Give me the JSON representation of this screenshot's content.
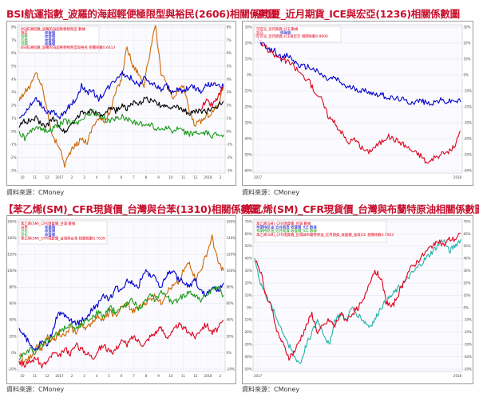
{
  "panels": [
    {
      "title": "BSI航運指數_波羅的海超輕便極限型與裕民(2606)相關係數圖",
      "source": "資料來源：CMoney",
      "chart_data": {
        "type": "line",
        "yticks_left": [
          "8%",
          "7%",
          "6%",
          "5%",
          "4%",
          "3%",
          "2%",
          "1%",
          "0%",
          "-1%",
          "-2%",
          "-3%"
        ],
        "yticks_right": [
          "8%",
          "7%",
          "6%",
          "5%",
          "4%",
          "3%",
          "2%",
          "1%",
          "0%",
          "-1%",
          "-2%",
          "-3%"
        ],
        "xticks": [
          "10",
          "11",
          "12",
          "2017",
          "2",
          "3",
          "4",
          "5",
          "6",
          "7",
          "8",
          "9",
          "10",
          "11",
          "12",
          "2018",
          "2"
        ],
        "legend": [
          {
            "text": "BSI航運指數_波羅的海超輕便極限型 數據",
            "color": "#e0001b"
          },
          {
            "text": "裕民",
            "color": "#e0001b"
          },
          {
            "text": "收盤價",
            "color": "#0000cc"
          },
          {
            "text": "指數",
            "color": "#1a9a1a"
          },
          {
            "text": "收盤價",
            "color": "#0000cc"
          },
          {
            "text": "信義",
            "color": "#1a9a1a"
          },
          {
            "text": "收盤價",
            "color": "#0000cc"
          },
          {
            "text": "中鋼",
            "color": "#1a9a1a"
          },
          {
            "text": "收盤價",
            "color": "#0000cc"
          },
          {
            "text": "BSI航運指數_波羅的海超輕便極限型與裕民 相關係數0.6413",
            "color": "#e0001b"
          }
        ],
        "series": [
          {
            "color": "#cc6600",
            "values": [
              2.5,
              3.0,
              3.5,
              4.5,
              3.5,
              1.5,
              -0.5,
              -1.0,
              -2.5,
              -1.5,
              -1.0,
              -0.5,
              -0.8,
              0.5,
              1.0,
              0.8,
              1.5,
              3.0,
              4.0,
              6.5,
              5.0,
              4.5,
              3.5,
              6.0,
              8.0,
              4.5,
              3.5,
              2.5,
              3.0,
              3.5,
              1.5,
              0.5,
              0.8,
              1.2,
              1.5,
              2.0,
              3.5
            ]
          },
          {
            "color": "#0000cc",
            "values": [
              1.0,
              1.5,
              2.0,
              2.5,
              2.0,
              1.5,
              1.5,
              1.0,
              1.5,
              2.0,
              2.5,
              3.5,
              3.0,
              3.0,
              2.5,
              3.0,
              3.5,
              4.0,
              4.5,
              4.2,
              4.0,
              3.5,
              4.0,
              3.8,
              3.5,
              3.2,
              3.5,
              3.0,
              3.2,
              3.0,
              3.5,
              3.3,
              3.0,
              3.5,
              3.6,
              3.4,
              3.5
            ]
          },
          {
            "color": "#000000",
            "values": [
              0.5,
              0.8,
              0.8,
              1.0,
              0.5,
              0.5,
              1.0,
              0.5,
              0.0,
              0.5,
              1.0,
              1.5,
              1.5,
              1.5,
              1.3,
              1.2,
              1.8,
              1.6,
              2.0,
              1.8,
              2.2,
              2.0,
              2.5,
              2.4,
              2.2,
              2.0,
              1.8,
              2.0,
              1.8,
              1.6,
              1.4,
              1.5,
              1.6,
              1.5,
              1.8,
              2.0,
              2.3
            ]
          },
          {
            "color": "#1a9a1a",
            "values": [
              0.0,
              -0.5,
              0.0,
              0.5,
              0.2,
              0.0,
              0.3,
              0.5,
              0.8,
              0.7,
              0.6,
              1.0,
              1.3,
              1.5,
              1.2,
              1.0,
              0.8,
              1.0,
              1.2,
              1.0,
              0.8,
              0.6,
              0.5,
              0.6,
              0.3,
              0.2,
              0.4,
              0.0,
              0.2,
              0.0,
              -0.2,
              0.0,
              -0.2,
              -0.1,
              -0.3,
              -0.2,
              -0.2
            ]
          },
          {
            "color": "#e0001b",
            "values": [
              null,
              null,
              null,
              null,
              null,
              null,
              null,
              null,
              null,
              null,
              null,
              null,
              null,
              null,
              null,
              null,
              null,
              null,
              null,
              null,
              null,
              null,
              null,
              null,
              null,
              null,
              null,
              null,
              null,
              null,
              null,
              null,
              1.8,
              2.3,
              2.0,
              2.6,
              3.4
            ]
          }
        ],
        "ylim": [
          -3,
          8
        ]
      }
    },
    {
      "title": "可可豆_近月期貨_ICE與宏亞(1236)相關係數圖",
      "source": "資料來源：CMoney",
      "chart_data": {
        "type": "line",
        "yticks_left": [
          "30%",
          "20%",
          "10%",
          "0%",
          "-10%",
          "-20%",
          "-30%",
          "-40%",
          "-50%",
          "-60%"
        ],
        "yticks_right": [
          "30%",
          "20%",
          "10%",
          "0%",
          "-10%",
          "-20%",
          "-30%",
          "-40%",
          "-50%",
          "-60%"
        ],
        "xticks": [
          "2017",
          "2018"
        ],
        "legend": [
          {
            "text": "可可豆_近月期貨_ICE 數據",
            "color": "#e0001b"
          },
          {
            "text": "宏亞",
            "color": "#e0001b"
          },
          {
            "text": "收盤價",
            "color": "#0000cc"
          },
          {
            "text": "可可豆_近月期貨_ICE與宏亞 相關係數0.8906",
            "color": "#e0001b"
          }
        ],
        "series": [
          {
            "color": "#0000cc",
            "values": [
              25,
              20,
              15,
              15,
              10,
              12,
              8,
              5,
              5,
              3,
              0,
              -3,
              -2,
              -5,
              -8,
              -8,
              -10,
              -10,
              -12,
              -12,
              -14,
              -15,
              -15,
              -17,
              -17,
              -16,
              -18,
              -17,
              -16,
              -17,
              -16,
              -17
            ]
          },
          {
            "color": "#e0001b",
            "values": [
              25,
              20,
              15,
              12,
              10,
              8,
              5,
              0,
              -3,
              -10,
              -15,
              -25,
              -30,
              -35,
              -42,
              -40,
              -45,
              -48,
              -45,
              -42,
              -38,
              -40,
              -42,
              -45,
              -48,
              -50,
              -55,
              -52,
              -50,
              -48,
              -45,
              -35
            ]
          }
        ],
        "ylim": [
          -60,
          30
        ]
      }
    },
    {
      "title": "【苯乙烯(SM)_CFR現貨價_台灣與台苯(1310)相關係數圖",
      "source": "資料來源：CMoney",
      "chart_data": {
        "type": "line",
        "yticks_left": [
          "160%",
          "140%",
          "120%",
          "100%",
          "80%",
          "60%",
          "40%",
          "20%",
          "0%",
          "-20%"
        ],
        "yticks_right": [
          "160%",
          "140%",
          "120%",
          "100%",
          "80%",
          "60%",
          "40%",
          "20%",
          "0%",
          "-20%"
        ],
        "xticks": [
          "10",
          "11",
          "12",
          "2017",
          "2",
          "3",
          "4",
          "5",
          "6",
          "7",
          "8",
          "9",
          "10",
          "11",
          "12",
          "2018",
          "2"
        ],
        "legend": [
          {
            "text": "苯乙烯(SM)_CFR現貨價_台灣 數據",
            "color": "#e0001b"
          },
          {
            "text": "台苯",
            "color": "#e0001b"
          },
          {
            "text": "收盤價",
            "color": "#0000cc"
          },
          {
            "text": "台化",
            "color": "#1a9a1a"
          },
          {
            "text": "收盤價",
            "color": "#0000cc"
          },
          {
            "text": "台化",
            "color": "#1a9a1a"
          },
          {
            "text": "收盤價",
            "color": "#0000cc"
          },
          {
            "text": "苯乙烯(SM)_CFR現貨價_台灣與台苯 相關係數0.7039",
            "color": "#e0001b"
          }
        ],
        "series": [
          {
            "color": "#cc6600",
            "values": [
              0,
              -10,
              -5,
              10,
              5,
              20,
              15,
              25,
              20,
              30,
              25,
              35,
              30,
              40,
              45,
              40,
              50,
              45,
              55,
              60,
              50,
              55,
              60,
              65,
              70,
              60,
              75,
              80,
              85,
              100,
              110,
              90,
              100,
              120,
              140,
              110,
              100
            ]
          },
          {
            "color": "#0000cc",
            "values": [
              30,
              20,
              10,
              5,
              15,
              10,
              30,
              50,
              45,
              40,
              35,
              40,
              45,
              55,
              60,
              70,
              65,
              80,
              75,
              90,
              85,
              80,
              100,
              95,
              90,
              80,
              95,
              100,
              90,
              85,
              80,
              90,
              75,
              70,
              80,
              75,
              85
            ]
          },
          {
            "color": "#1a9a1a",
            "values": [
              -5,
              0,
              5,
              0,
              10,
              15,
              20,
              25,
              30,
              35,
              30,
              35,
              40,
              45,
              50,
              45,
              55,
              50,
              55,
              60,
              65,
              55,
              60,
              70,
              65,
              75,
              70,
              60,
              65,
              70,
              75,
              70,
              65,
              70,
              75,
              80,
              70
            ]
          },
          {
            "color": "#e0001b",
            "values": [
              -10,
              -15,
              -10,
              -5,
              -15,
              -10,
              0,
              -5,
              5,
              0,
              10,
              5,
              0,
              -5,
              5,
              10,
              0,
              5,
              15,
              10,
              20,
              15,
              10,
              20,
              25,
              30,
              20,
              25,
              35,
              30,
              25,
              20,
              30,
              35,
              25,
              30,
              40
            ]
          }
        ],
        "ylim": [
          -20,
          160
        ]
      }
    },
    {
      "title": "苯乙烯(SM)_CFR現貨價_台灣與布蘭特原油相關係數圖",
      "source": "資料來源：CMoney",
      "chart_data": {
        "type": "line",
        "yticks_left": [
          "70%",
          "60%",
          "50%",
          "40%",
          "30%",
          "20%",
          "10%",
          "0%",
          "-10%",
          "-20%",
          "-30%",
          "-40%",
          "-50%"
        ],
        "yticks_right": [
          "70%",
          "60%",
          "50%",
          "40%",
          "30%",
          "20%",
          "10%",
          "0%",
          "-10%",
          "-20%",
          "-30%",
          "-40%",
          "-50%"
        ],
        "xticks": [
          "2017",
          "2018"
        ],
        "legend": [
          {
            "text": "苯乙烯(SM)_CFR現貨價_台灣 數據",
            "color": "#e0001b"
          },
          {
            "text": "布蘭特原油_近月期貨 收盤價_ICE 數據",
            "color": "#0000cc"
          },
          {
            "text": "布蘭特原油_近月期貨 收盤價_ICE 數據",
            "color": "#1a9a1a"
          },
          {
            "text": "苯乙烯(SM)_CFR現貨價_台灣與布蘭特原油_近月期貨_收盤價_倫敦ICE 相關係數0.7563",
            "color": "#e0001b"
          }
        ],
        "series": [
          {
            "color": "#20b2aa",
            "values": [
              40,
              20,
              10,
              0,
              -10,
              -20,
              -30,
              -40,
              -45,
              -30,
              -20,
              -10,
              -20,
              -30,
              -10,
              -5,
              -10,
              0,
              -5,
              -10,
              -15,
              -10,
              0,
              5,
              10,
              15,
              20,
              25,
              30,
              35,
              40,
              45,
              50,
              55,
              45,
              50,
              55
            ]
          },
          {
            "color": "#e0001b",
            "values": [
              40,
              30,
              10,
              0,
              -20,
              -30,
              -40,
              -35,
              -25,
              -15,
              -5,
              -20,
              -15,
              -10,
              -15,
              -5,
              -10,
              -5,
              0,
              5,
              20,
              30,
              25,
              5,
              0,
              10,
              20,
              30,
              35,
              40,
              45,
              50,
              55,
              50,
              55,
              55,
              60
            ]
          }
        ],
        "ylim": [
          -50,
          70
        ]
      }
    }
  ]
}
